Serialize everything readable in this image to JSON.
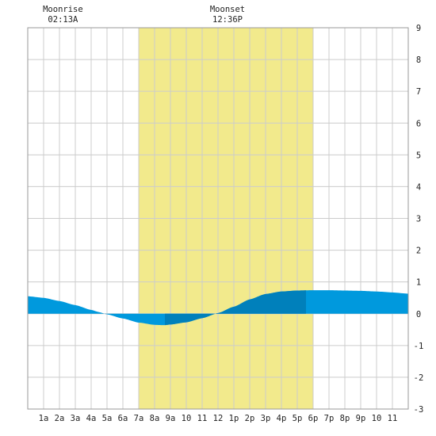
{
  "moon_events": [
    {
      "label": "Moonrise",
      "time": "02:13A",
      "hour": 2.22
    },
    {
      "label": "Moonset",
      "time": "12:36P",
      "hour": 12.6
    }
  ],
  "chart_data": {
    "type": "area",
    "x_tick_labels": [
      "1a",
      "2a",
      "3a",
      "4a",
      "5a",
      "6a",
      "7a",
      "8a",
      "9a",
      "10",
      "11",
      "12",
      "1p",
      "2p",
      "3p",
      "4p",
      "5p",
      "6p",
      "7p",
      "8p",
      "9p",
      "10",
      "11"
    ],
    "y_tick_labels": [
      "9",
      "8",
      "7",
      "6",
      "5",
      "4",
      "3",
      "2",
      "1",
      "0",
      "-1",
      "-2",
      "-3"
    ],
    "xlim": [
      0,
      24
    ],
    "ylim": [
      -3,
      9
    ],
    "grid": true,
    "y_axis_side": "right",
    "daylight_band": {
      "start_hour": 7.0,
      "end_hour": 18.0,
      "color": "#f2ea8c"
    },
    "colors": {
      "tide_light": "#0099dd",
      "tide_dark": "#0080bb",
      "grid": "#cccccc",
      "frame": "#999999"
    },
    "dark_segments": [
      [
        8.65,
        12.0
      ],
      [
        12.0,
        17.55
      ]
    ],
    "tide_curve": {
      "hours": [
        0,
        1,
        2,
        3,
        4,
        4.5,
        5,
        6,
        7,
        8,
        8.6,
        9,
        10,
        11,
        12,
        13,
        14,
        15,
        16,
        17,
        18,
        19,
        20,
        21,
        22,
        23,
        24
      ],
      "heights": [
        0.55,
        0.5,
        0.4,
        0.27,
        0.12,
        0.05,
        -0.02,
        -0.15,
        -0.28,
        -0.35,
        -0.36,
        -0.34,
        -0.27,
        -0.14,
        0.02,
        0.22,
        0.45,
        0.62,
        0.7,
        0.73,
        0.74,
        0.74,
        0.73,
        0.72,
        0.7,
        0.67,
        0.63
      ]
    }
  }
}
